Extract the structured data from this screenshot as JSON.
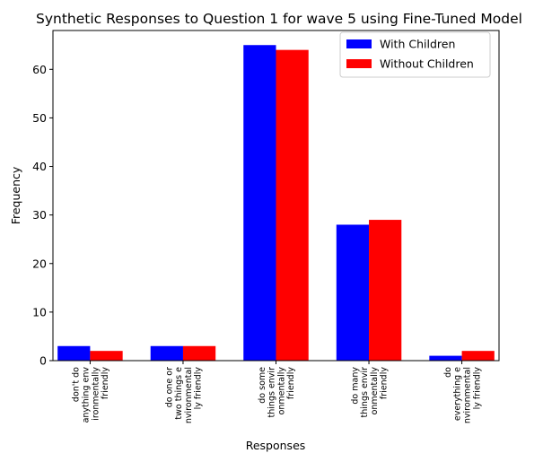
{
  "chart_data": {
    "type": "bar",
    "title": "Synthetic Responses to Question 1 for wave 5 using Fine-Tuned Model",
    "xlabel": "Responses",
    "ylabel": "Frequency",
    "ylim": [
      0,
      68
    ],
    "yticks": [
      0,
      10,
      20,
      30,
      40,
      50,
      60
    ],
    "grid": false,
    "legend_position": "top-right",
    "categories": [
      [
        "don't do",
        "anything env",
        "ironmentally",
        "friendly"
      ],
      [
        "do one or",
        "two things e",
        "nvironmental",
        "ly friendly"
      ],
      [
        "do some",
        "things envir",
        "onmentally",
        "friendly"
      ],
      [
        "do many",
        "things envir",
        "onmentally",
        "friendly"
      ],
      [
        "do",
        "everything e",
        "nvironmental",
        "ly friendly"
      ]
    ],
    "series": [
      {
        "name": "With Children",
        "color": "#0000ff",
        "values": [
          3,
          3,
          65,
          28,
          1
        ]
      },
      {
        "name": "Without Children",
        "color": "#ff0000",
        "values": [
          2,
          3,
          64,
          29,
          2
        ]
      }
    ]
  }
}
